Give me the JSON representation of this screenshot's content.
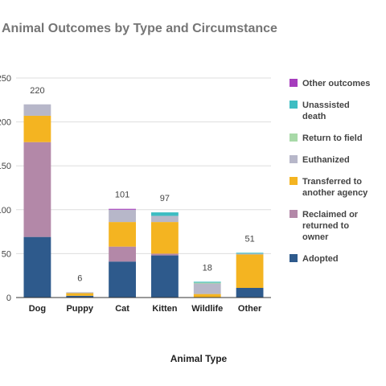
{
  "chart_data": {
    "type": "bar",
    "stacked": true,
    "title": "Animal Outcomes by Type and Circumstance",
    "xlabel": "Animal Type",
    "ylabel": "",
    "ylim": [
      0,
      250
    ],
    "yticks": [
      "0",
      "50",
      "100",
      "150",
      "200",
      "250"
    ],
    "grid": true,
    "legend_position": "right",
    "categories": [
      "Dog",
      "Puppy",
      "Cat",
      "Kitten",
      "Wildlife",
      "Other"
    ],
    "totals": [
      "220",
      "6",
      "101",
      "97",
      "18",
      "51"
    ],
    "series": [
      {
        "name": "Adopted",
        "color": "#2e5a8c",
        "values": [
          69,
          2,
          41,
          48,
          0,
          11
        ]
      },
      {
        "name": "Reclaimed or returned to owner",
        "color": "#b388a8",
        "values": [
          108,
          0,
          17,
          2,
          0,
          0
        ]
      },
      {
        "name": "Transferred to another agency",
        "color": "#f4b421",
        "values": [
          30,
          3,
          28,
          36,
          4,
          38
        ]
      },
      {
        "name": "Euthanized",
        "color": "#b7b7c9",
        "values": [
          13,
          1,
          14,
          7,
          12,
          1
        ]
      },
      {
        "name": "Return to field",
        "color": "#a8d9a8",
        "values": [
          0,
          0,
          0,
          0,
          1,
          0
        ]
      },
      {
        "name": "Unassisted death",
        "color": "#3dbdc2",
        "values": [
          0,
          0,
          0,
          4,
          1,
          1
        ]
      },
      {
        "name": "Other outcomes",
        "color": "#a63dbd",
        "values": [
          0,
          0,
          1,
          0,
          0,
          0
        ]
      }
    ],
    "legend_lines": [
      [
        "Other outcomes"
      ],
      [
        "Unassisted",
        "death"
      ],
      [
        "Return to field"
      ],
      [
        "Euthanized"
      ],
      [
        "Transferred to",
        "another agency"
      ],
      [
        "Reclaimed or",
        "returned to",
        "owner"
      ],
      [
        "Adopted"
      ]
    ],
    "legend_colors": [
      "#a63dbd",
      "#3dbdc2",
      "#a8d9a8",
      "#b7b7c9",
      "#f4b421",
      "#b388a8",
      "#2e5a8c"
    ]
  }
}
